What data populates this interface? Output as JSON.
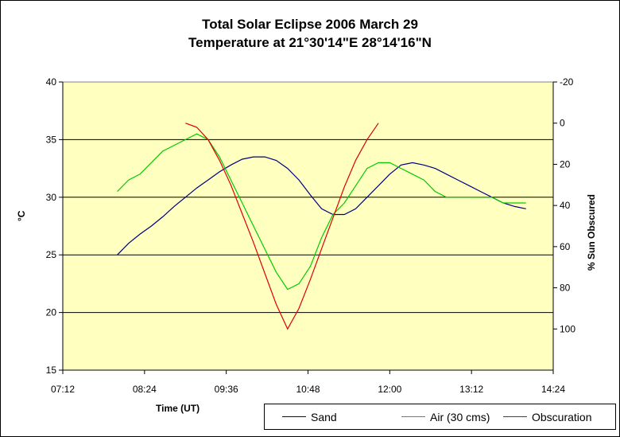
{
  "chart_data": {
    "type": "line",
    "title": "Total Solar Eclipse 2006 March 29",
    "subtitle": "Temperature at 21°30'14\"E 28°14'16\"N",
    "xlabel": "Time (UT)",
    "ylabel": "°C",
    "y2label": "% Sun Obscured",
    "xlim": [
      "07:12",
      "14:24"
    ],
    "x_ticks": [
      "07:12",
      "08:24",
      "09:36",
      "10:48",
      "12:00",
      "13:12",
      "14:24"
    ],
    "ylim": [
      15,
      40
    ],
    "y_ticks": [
      "15",
      "20",
      "25",
      "30",
      "35",
      "40"
    ],
    "y2lim": [
      120,
      -20
    ],
    "y2_ticks": [
      "-20",
      "0",
      "20",
      "40",
      "60",
      "80",
      "100"
    ],
    "grid": "horizontal",
    "legend": "bottom",
    "plot_background": "#ffffc0",
    "series": [
      {
        "name": "Sand",
        "color": "#000080",
        "axis": "left",
        "x": [
          "08:00",
          "08:10",
          "08:20",
          "08:30",
          "08:40",
          "08:50",
          "09:00",
          "09:10",
          "09:20",
          "09:30",
          "09:40",
          "09:50",
          "10:00",
          "10:10",
          "10:20",
          "10:30",
          "10:40",
          "10:50",
          "11:00",
          "11:10",
          "11:20",
          "11:30",
          "11:40",
          "11:50",
          "12:00",
          "12:10",
          "12:20",
          "12:30",
          "12:40",
          "12:50",
          "13:00",
          "13:10",
          "13:20",
          "13:30",
          "13:40",
          "13:50",
          "14:00"
        ],
        "values": [
          25.0,
          26.0,
          26.8,
          27.5,
          28.3,
          29.2,
          30.0,
          30.8,
          31.5,
          32.2,
          32.8,
          33.3,
          33.5,
          33.5,
          33.2,
          32.5,
          31.5,
          30.2,
          29.0,
          28.5,
          28.5,
          29.0,
          30.0,
          31.0,
          32.0,
          32.8,
          33.0,
          32.8,
          32.5,
          32.0,
          31.5,
          31.0,
          30.5,
          30.0,
          29.5,
          29.2,
          29.0
        ]
      },
      {
        "name": "Air (30 cms)",
        "color": "#00cc00",
        "axis": "left",
        "x": [
          "08:00",
          "08:10",
          "08:20",
          "08:30",
          "08:40",
          "08:50",
          "09:00",
          "09:10",
          "09:20",
          "09:30",
          "09:40",
          "09:50",
          "10:00",
          "10:10",
          "10:20",
          "10:30",
          "10:40",
          "10:50",
          "11:00",
          "11:10",
          "11:20",
          "11:30",
          "11:40",
          "11:50",
          "12:00",
          "12:10",
          "12:20",
          "12:30",
          "12:40",
          "12:50",
          "13:00",
          "13:10",
          "13:20",
          "13:30",
          "13:40",
          "13:50",
          "14:00"
        ],
        "values": [
          30.5,
          31.5,
          32.0,
          33.0,
          34.0,
          34.5,
          35.0,
          35.5,
          35.0,
          33.5,
          31.5,
          29.5,
          27.5,
          25.5,
          23.5,
          22.0,
          22.5,
          24.0,
          26.5,
          28.5,
          29.5,
          31.0,
          32.5,
          33.0,
          33.0,
          32.5,
          32.0,
          31.5,
          30.5,
          30.0,
          30.0,
          30.0,
          30.0,
          30.0,
          29.5,
          29.5,
          29.5
        ]
      },
      {
        "name": "Obscuration",
        "color": "#dd0000",
        "axis": "right",
        "x": [
          "09:00",
          "09:10",
          "09:20",
          "09:30",
          "09:40",
          "09:50",
          "10:00",
          "10:10",
          "10:20",
          "10:30",
          "10:40",
          "10:50",
          "11:00",
          "11:10",
          "11:20",
          "11:30",
          "11:40",
          "11:50"
        ],
        "values": [
          0,
          2,
          8,
          18,
          30,
          44,
          58,
          73,
          88,
          100,
          90,
          76,
          61,
          46,
          31,
          18,
          8,
          0
        ]
      }
    ]
  }
}
